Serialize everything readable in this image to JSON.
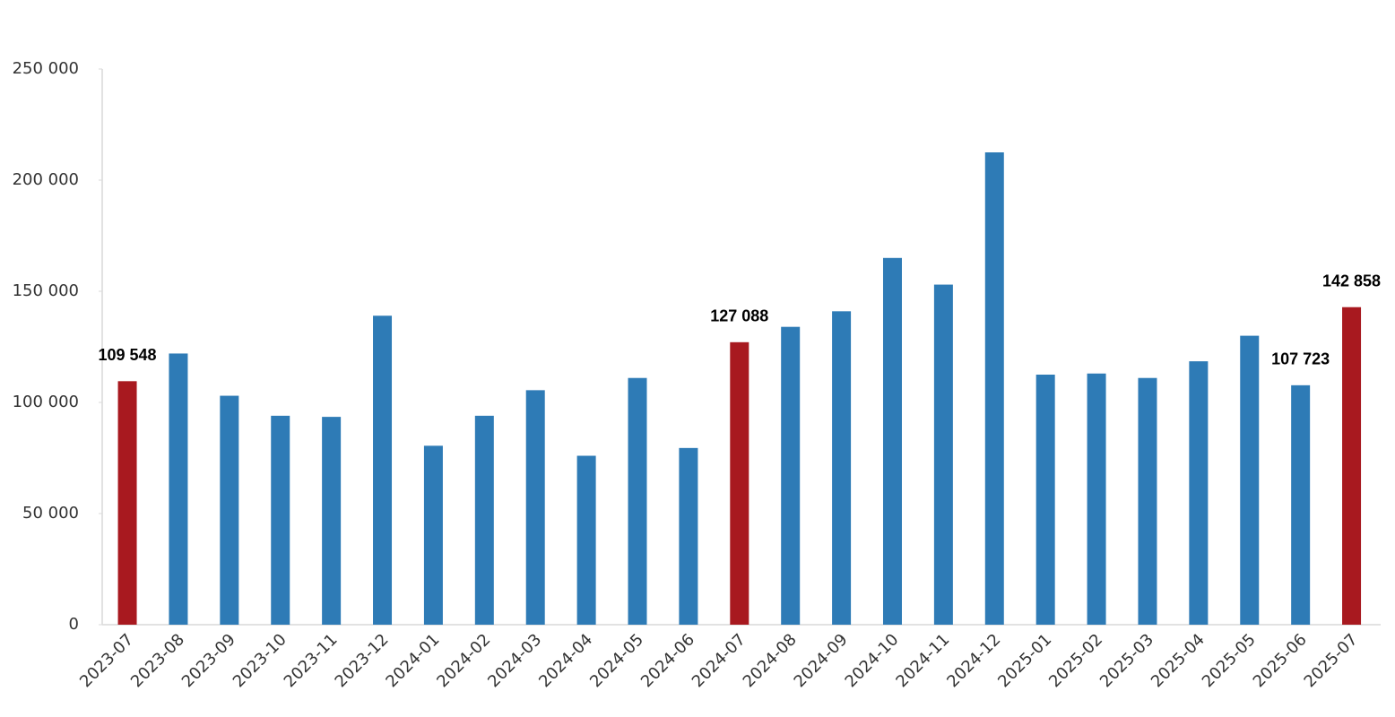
{
  "chart_data": {
    "type": "bar",
    "categories": [
      "2023-07",
      "2023-08",
      "2023-09",
      "2023-10",
      "2023-11",
      "2023-12",
      "2024-01",
      "2024-02",
      "2024-03",
      "2024-04",
      "2024-05",
      "2024-06",
      "2024-07",
      "2024-08",
      "2024-09",
      "2024-10",
      "2024-11",
      "2024-12",
      "2025-01",
      "2025-02",
      "2025-03",
      "2025-04",
      "2025-05",
      "2025-06",
      "2025-07"
    ],
    "values": [
      109548,
      122000,
      103000,
      94000,
      93500,
      139000,
      80500,
      94000,
      105500,
      76000,
      111000,
      79500,
      127088,
      134000,
      141000,
      165000,
      153000,
      212500,
      112500,
      113000,
      111000,
      118500,
      130000,
      107723,
      142858
    ],
    "value_labels": [
      "109 548",
      null,
      null,
      null,
      null,
      null,
      null,
      null,
      null,
      null,
      null,
      null,
      "127 088",
      null,
      null,
      null,
      null,
      null,
      null,
      null,
      null,
      null,
      null,
      "107 723",
      "142 858"
    ],
    "colors": [
      "#a8191f",
      "#2e7bb6",
      "#2e7bb6",
      "#2e7bb6",
      "#2e7bb6",
      "#2e7bb6",
      "#2e7bb6",
      "#2e7bb6",
      "#2e7bb6",
      "#2e7bb6",
      "#2e7bb6",
      "#2e7bb6",
      "#a8191f",
      "#2e7bb6",
      "#2e7bb6",
      "#2e7bb6",
      "#2e7bb6",
      "#2e7bb6",
      "#2e7bb6",
      "#2e7bb6",
      "#2e7bb6",
      "#2e7bb6",
      "#2e7bb6",
      "#2e7bb6",
      "#a8191f"
    ],
    "ylim": [
      0,
      250000
    ],
    "yticks": [
      0,
      {
        "value": 50000,
        "label": "50 000"
      },
      {
        "value": 100000,
        "label": "100 000"
      },
      {
        "value": 150000,
        "label": "150 000"
      },
      {
        "value": 200000,
        "label": "200 000"
      },
      {
        "value": 250000,
        "label": "250 000"
      }
    ],
    "grid": false
  }
}
